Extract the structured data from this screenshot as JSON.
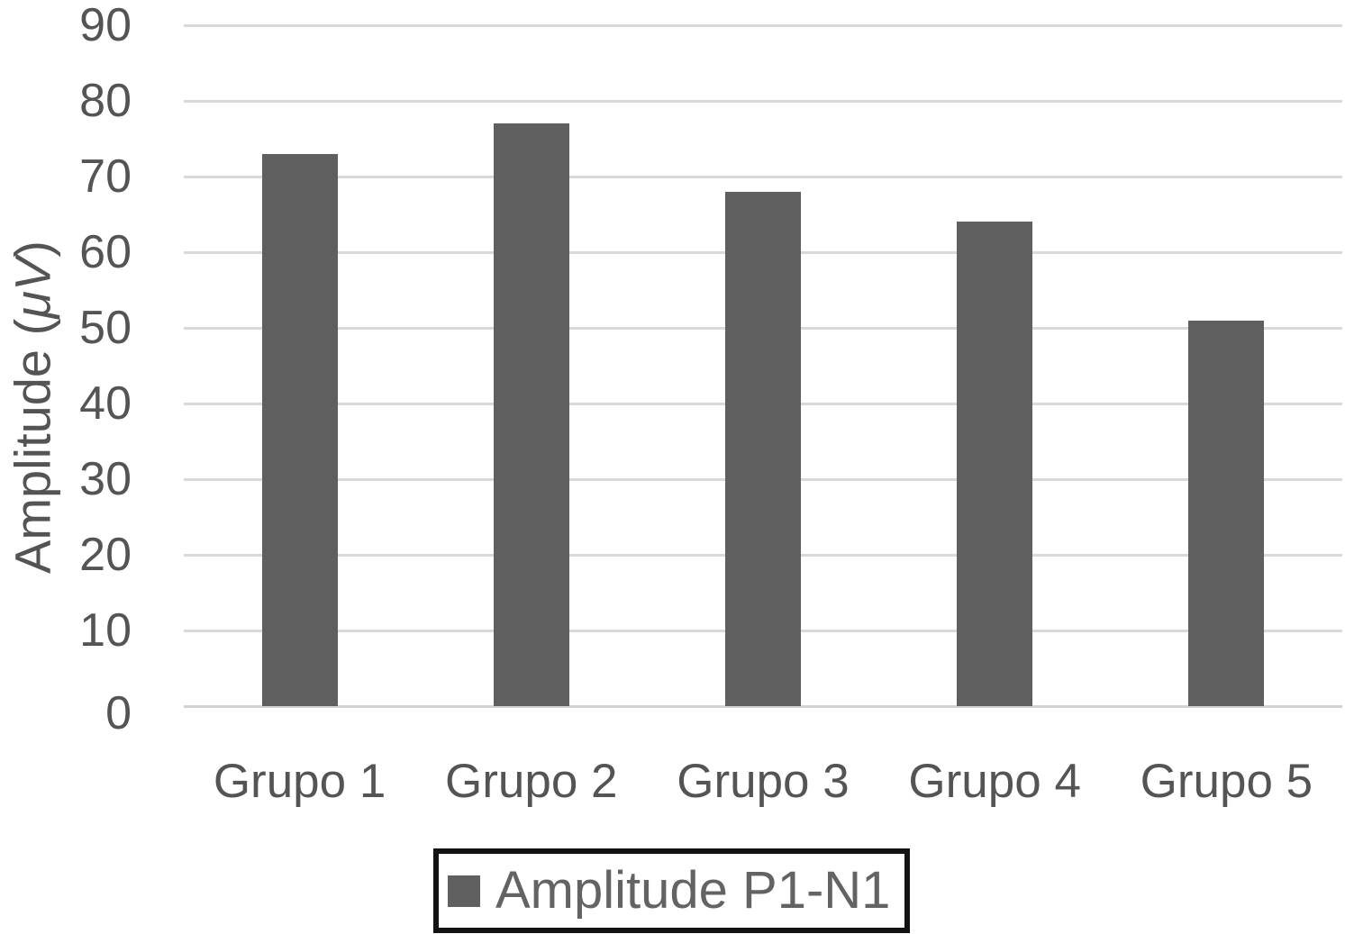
{
  "chart_data": {
    "type": "bar",
    "title": "",
    "categories": [
      "Grupo 1",
      "Grupo 2",
      "Grupo 3",
      "Grupo 4",
      "Grupo 5"
    ],
    "series": [
      {
        "name": "Amplitude P1-N1",
        "values": [
          73,
          77,
          68,
          64,
          51
        ]
      }
    ],
    "xlabel": "",
    "ylabel": "Amplitude (μV)",
    "ylabel_parts": {
      "prefix": "Amplitude (",
      "italic": "μV",
      "suffix": ")"
    },
    "ylim": [
      0,
      90
    ],
    "yticks": [
      0,
      10,
      20,
      30,
      40,
      50,
      60,
      70,
      80,
      90
    ],
    "grid": "horizontal-gridlines-on",
    "legend": {
      "position": "bottom-center",
      "bordered": true,
      "entries": [
        "Amplitude P1-N1"
      ]
    },
    "colors": {
      "bar": "#5f5f5f",
      "gridline": "#d9d9d9",
      "axis_text": "#545454",
      "legend_text": "#636363",
      "legend_border": "#131313",
      "background": "#ffffff"
    }
  }
}
